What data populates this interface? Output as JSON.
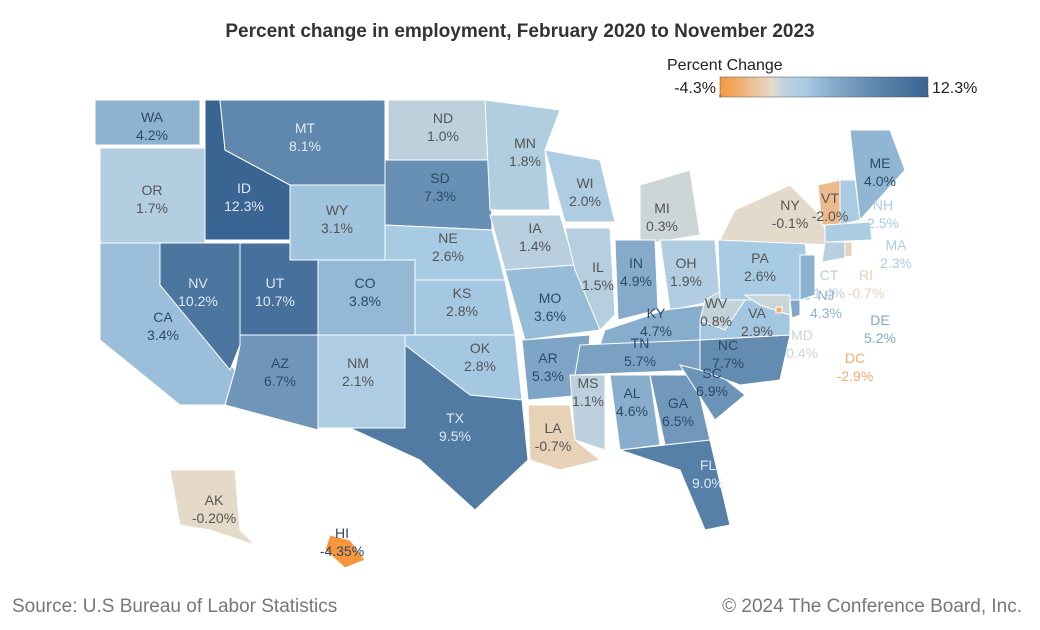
{
  "chart_data": {
    "type": "choropleth",
    "title": "Percent change in employment, February 2020 to November 2023",
    "legend_title": "Percent Change",
    "colorlim": [
      -4.3,
      12.3
    ],
    "colorticks": [
      {
        "value": -4.3,
        "label": "-4.3%"
      },
      {
        "value": 12.3,
        "label": "12.3%"
      }
    ],
    "colors": {
      "low": "#f7963c",
      "zero": "#e4dccf",
      "light": "#a8cbe4",
      "high": "#3a6592"
    },
    "states": [
      "WA",
      "OR",
      "CA",
      "NV",
      "ID",
      "MT",
      "WY",
      "UT",
      "AZ",
      "CO",
      "NM",
      "ND",
      "SD",
      "NE",
      "KS",
      "OK",
      "TX",
      "MN",
      "IA",
      "MO",
      "AR",
      "LA",
      "WI",
      "IL",
      "MI",
      "IN",
      "OH",
      "KY",
      "TN",
      "MS",
      "AL",
      "GA",
      "FL",
      "SC",
      "NC",
      "VA",
      "WV",
      "PA",
      "NY",
      "VT",
      "NH",
      "ME",
      "MA",
      "CT",
      "RI",
      "NJ",
      "DE",
      "MD",
      "DC",
      "AK",
      "HI"
    ],
    "values": [
      4.2,
      1.7,
      3.4,
      10.2,
      12.3,
      8.1,
      3.1,
      10.7,
      6.7,
      3.8,
      2.1,
      1.0,
      7.3,
      2.6,
      2.8,
      2.8,
      9.5,
      1.8,
      1.4,
      3.6,
      5.3,
      -0.7,
      2.0,
      1.5,
      0.3,
      4.9,
      1.9,
      4.7,
      5.7,
      1.1,
      4.6,
      6.5,
      9.0,
      6.9,
      7.7,
      2.9,
      0.8,
      2.6,
      -0.1,
      -2.0,
      2.5,
      4.0,
      2.3,
      1.4,
      -0.7,
      4.3,
      5.2,
      0.4,
      -2.9,
      -0.2,
      -4.35
    ],
    "value_labels": [
      "4.2%",
      "1.7%",
      "3.4%",
      "10.2%",
      "12.3%",
      "8.1%",
      "3.1%",
      "10.7%",
      "6.7%",
      "3.8%",
      "2.1%",
      "1.0%",
      "7.3%",
      "2.6%",
      "2.8%",
      "2.8%",
      "9.5%",
      "1.8%",
      "1.4%",
      "3.6%",
      "5.3%",
      "-0.7%",
      "2.0%",
      "1.5%",
      "0.3%",
      "4.9%",
      "1.9%",
      "4.7%",
      "5.7%",
      "1.1%",
      "4.6%",
      "6.5%",
      "9.0%",
      "6.9%",
      "7.7%",
      "2.9%",
      "0.8%",
      "2.6%",
      "-0.1%",
      "-2.0%",
      "2.5%",
      "4.0%",
      "2.3%",
      "1.4%",
      "-0.7%",
      "4.3%",
      "5.2%",
      "0.4%",
      "-2.9%",
      "-0.20%",
      "-4.35%"
    ]
  },
  "footer": {
    "source": "Source: U.S Bureau of Labor Statistics",
    "copyright": "© 2024 The Conference Board, Inc."
  }
}
